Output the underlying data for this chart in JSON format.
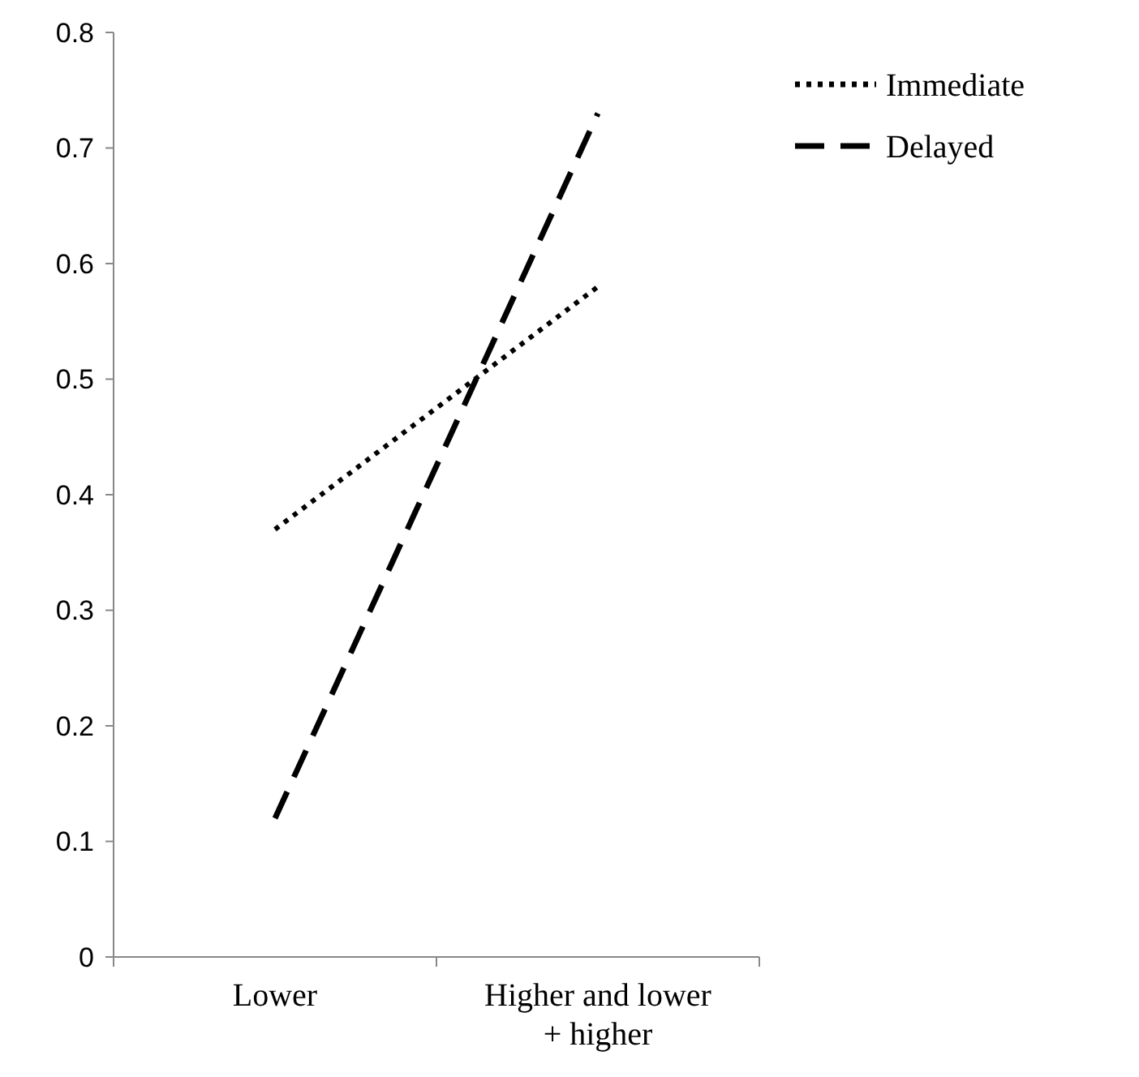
{
  "chart_data": {
    "type": "line",
    "categories": [
      "Lower",
      "Higher and lower + higher"
    ],
    "series": [
      {
        "name": "Immediate",
        "color": "#000000",
        "values": [
          0.37,
          0.58
        ],
        "line_style": "dotted"
      },
      {
        "name": "Delayed",
        "color": "#000000",
        "values": [
          0.12,
          0.73
        ],
        "line_style": "dashed"
      }
    ],
    "ylim": [
      0,
      0.8
    ],
    "yticks": [
      0,
      0.1,
      0.2,
      0.3,
      0.4,
      0.5,
      0.6,
      0.7,
      0.8
    ],
    "grid": false,
    "legend": "top right",
    "marker": "none"
  }
}
